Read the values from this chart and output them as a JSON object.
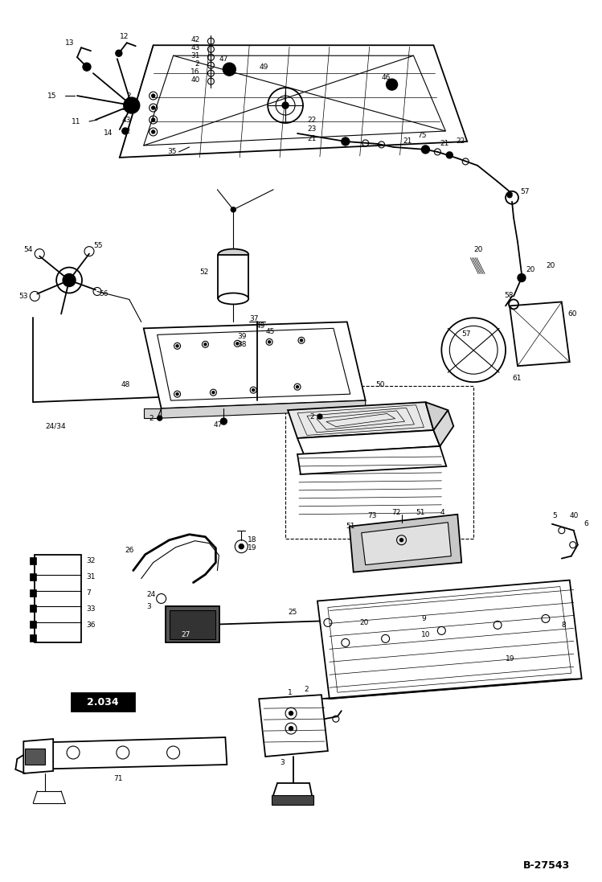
{
  "bg_color": "#ffffff",
  "line_color": "#000000",
  "fig_width": 7.49,
  "fig_height": 10.97,
  "dpi": 100,
  "watermark": "B-27543",
  "box_label": "2.034"
}
